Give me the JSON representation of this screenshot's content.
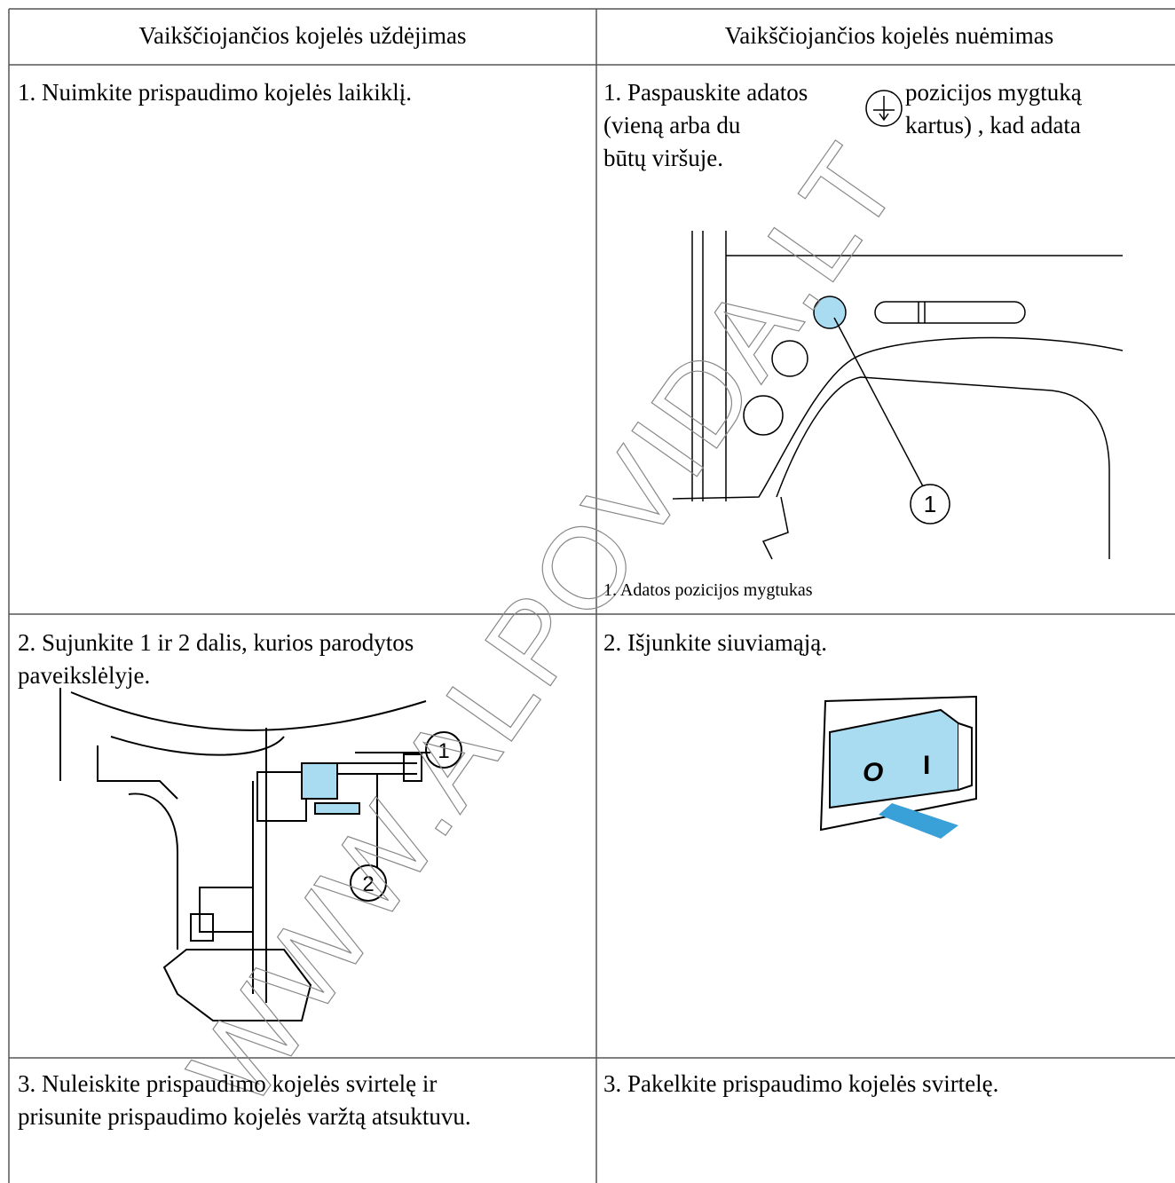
{
  "table": {
    "header": [
      "Vaikščiojančios kojelės uždėjimas",
      "Vaikščiojančios kojelės nuėmimas"
    ],
    "rows": [
      [
        {
          "text": "1. Nuimkite prispaudimo kojelės laikiklį."
        },
        {
          "text_left": [
            "1. Paspauskite adatos",
            "(vieną arba du"
          ],
          "text_right": [
            "pozicijos mygtuką",
            "kartus) , kad adata"
          ],
          "text_end": "būtų viršuje.",
          "callout": "1",
          "caption": "1. Adatos pozicijos mygtukas"
        }
      ],
      [
        {
          "text": [
            "2. Sujunkite 1 ir 2 dalis, kurios parodytos",
            "paveikslėlyje."
          ],
          "callouts": [
            "1",
            "2"
          ]
        },
        {
          "text": "2. Išjunkite siuviamąją.",
          "switch_labels": [
            "O",
            "I"
          ]
        }
      ],
      [
        {
          "text": [
            "3. Nuleiskite prispaudimo kojelės svirtelę ir",
            "prisunite prispaudimo kojelės varžtą atsuktuvu."
          ]
        },
        {
          "text": "3. Pakelkite prispaudimo kojelės svirtelę."
        }
      ]
    ]
  },
  "watermark": "WWW.ALPOVIDA.LT"
}
